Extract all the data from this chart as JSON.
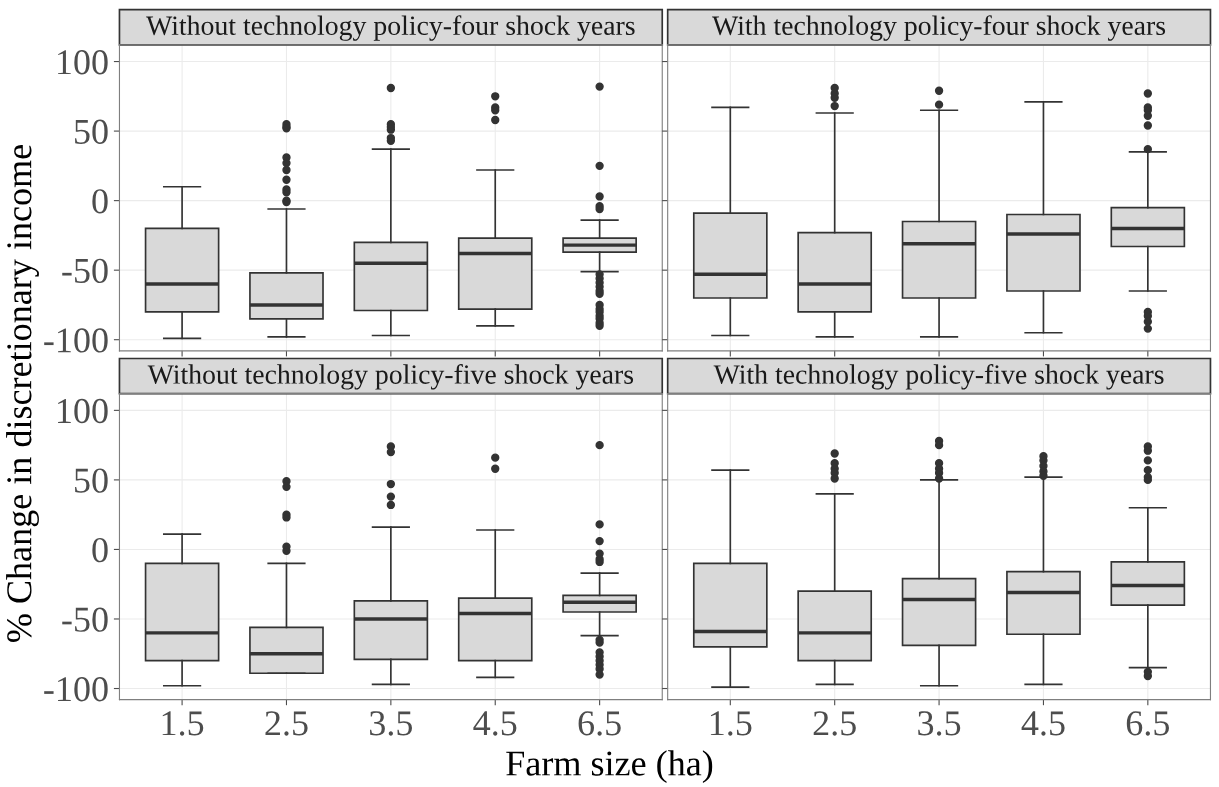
{
  "chart_data": [
    {
      "type": "box",
      "title": "Without technology policy-four shock years",
      "ylabel": "% Change in discretionary income",
      "categories": [
        "1.5",
        "2.5",
        "3.5",
        "4.5",
        "6.5"
      ],
      "color": "#d9d9d9",
      "ylim": [
        -108,
        112
      ],
      "yticks": [
        -100,
        -50,
        0,
        50,
        100
      ],
      "grid": true,
      "tick_labels": "y",
      "marker": "circle",
      "boxes": [
        {
          "low": -99,
          "q1": -80,
          "median": -60,
          "q3": -20,
          "high": 10
        },
        {
          "low": -98,
          "q1": -85,
          "median": -75,
          "q3": -52,
          "high": -6,
          "outliers": [
            55,
            53,
            52,
            31,
            27,
            22,
            15,
            8,
            6,
            0,
            -1
          ]
        },
        {
          "low": -97,
          "q1": -79,
          "median": -45,
          "q3": -30,
          "high": 37,
          "outliers": [
            81,
            55,
            53,
            51,
            45,
            43
          ]
        },
        {
          "low": -90,
          "q1": -78,
          "median": -38,
          "q3": -27,
          "high": 22,
          "outliers": [
            75,
            67,
            65,
            58
          ]
        },
        {
          "low": -51,
          "q1": -37,
          "median": -32,
          "q3": -27,
          "high": -14,
          "outliers": [
            82,
            25,
            3,
            -4,
            -6,
            -53,
            -56,
            -59,
            -62,
            -65,
            -67,
            -75,
            -78,
            -80,
            -83,
            -85,
            -88,
            -90
          ]
        }
      ]
    },
    {
      "type": "box",
      "title": "With technology policy-four shock years",
      "categories": [
        "1.5",
        "2.5",
        "3.5",
        "4.5",
        "6.5"
      ],
      "color": "#d9d9d9",
      "ylim": [
        -108,
        112
      ],
      "yticks": [
        {
          "value": -100,
          "label": null
        },
        {
          "value": -50,
          "label": null
        },
        {
          "value": 0,
          "label": null
        },
        {
          "value": 50,
          "label": null
        },
        {
          "value": 100,
          "label": null
        }
      ],
      "grid": true,
      "tick_labels": false,
      "marker": "circle",
      "boxes": [
        {
          "low": -97,
          "q1": -70,
          "median": -53,
          "q3": -9,
          "high": 67
        },
        {
          "low": -98,
          "q1": -80,
          "median": -60,
          "q3": -23,
          "high": 63,
          "outliers": [
            81,
            77,
            74,
            68
          ]
        },
        {
          "low": -98,
          "q1": -70,
          "median": -31,
          "q3": -15,
          "high": 65,
          "outliers": [
            79,
            69
          ]
        },
        {
          "low": -95,
          "q1": -65,
          "median": -24,
          "q3": -10,
          "high": 71
        },
        {
          "low": -65,
          "q1": -33,
          "median": -20,
          "q3": -5,
          "high": 35,
          "outliers": [
            77,
            67,
            65,
            61,
            54,
            37,
            -80,
            -83,
            -87,
            -92
          ]
        }
      ]
    },
    {
      "type": "box",
      "title": "Without technology policy-five shock years",
      "xlabel": "Farm size (ha)",
      "categories": [
        "1.5",
        "2.5",
        "3.5",
        "4.5",
        "6.5"
      ],
      "color": "#d9d9d9",
      "ylim": [
        -108,
        112
      ],
      "yticks": [
        -100,
        -50,
        0,
        50,
        100
      ],
      "grid": true,
      "marker": "circle",
      "boxes": [
        {
          "low": -98,
          "q1": -80,
          "median": -60,
          "q3": -10,
          "high": 11
        },
        {
          "low": -89,
          "q1": -89,
          "median": -75,
          "q3": -56,
          "high": -10,
          "outliers": [
            49,
            45,
            25,
            23,
            2,
            -1
          ]
        },
        {
          "low": -97,
          "q1": -79,
          "median": -50,
          "q3": -37,
          "high": 16,
          "outliers": [
            74,
            70,
            47,
            38,
            32
          ]
        },
        {
          "low": -92,
          "q1": -80,
          "median": -46,
          "q3": -35,
          "high": 14,
          "outliers": [
            66,
            58
          ]
        },
        {
          "low": -62,
          "q1": -45,
          "median": -38,
          "q3": -33,
          "high": -17,
          "outliers": [
            75,
            18,
            6,
            -3,
            -7,
            -9,
            -65,
            -67,
            -74,
            -77,
            -80,
            -83,
            -86,
            -90
          ]
        }
      ]
    },
    {
      "type": "box",
      "title": "With technology policy-five shock years",
      "categories": [
        "1.5",
        "2.5",
        "3.5",
        "4.5",
        "6.5"
      ],
      "color": "#d9d9d9",
      "ylim": [
        -108,
        112
      ],
      "yticks": [
        {
          "value": -100,
          "label": null
        },
        {
          "value": -50,
          "label": null
        },
        {
          "value": 0,
          "label": null
        },
        {
          "value": 50,
          "label": null
        },
        {
          "value": 100,
          "label": null
        }
      ],
      "grid": true,
      "tick_labels": "x",
      "marker": "circle",
      "boxes": [
        {
          "low": -99,
          "q1": -70,
          "median": -59,
          "q3": -10,
          "high": 57
        },
        {
          "low": -97,
          "q1": -80,
          "median": -60,
          "q3": -30,
          "high": 40,
          "outliers": [
            69,
            62,
            58,
            55,
            51
          ]
        },
        {
          "low": -98,
          "q1": -69,
          "median": -36,
          "q3": -21,
          "high": 50,
          "outliers": [
            78,
            75,
            62,
            58,
            55,
            51
          ]
        },
        {
          "low": -97,
          "q1": -61,
          "median": -31,
          "q3": -16,
          "high": 52,
          "outliers": [
            67,
            64,
            60,
            56,
            53
          ]
        },
        {
          "low": -85,
          "q1": -40,
          "median": -26,
          "q3": -9,
          "high": 30,
          "outliers": [
            74,
            71,
            64,
            57,
            52,
            50,
            -88,
            -91
          ]
        }
      ]
    }
  ]
}
